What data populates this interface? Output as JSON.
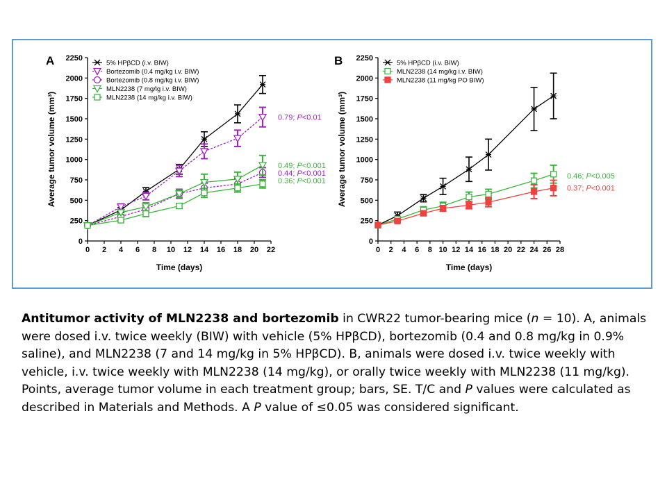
{
  "chart_data": [
    {
      "type": "line",
      "panel_label": "A",
      "xlabel": "Time (days)",
      "ylabel": "Average tumor volume (mm³)",
      "xlim": [
        0,
        22
      ],
      "ylim": [
        0,
        2250
      ],
      "xticks": [
        "0",
        "2",
        "4",
        "6",
        "8",
        "10",
        "12",
        "14",
        "16",
        "18",
        "20",
        "22"
      ],
      "yticks": [
        "0",
        "250",
        "500",
        "750",
        "1000",
        "1250",
        "1500",
        "1750",
        "2000",
        "2250"
      ],
      "legend_position": "top-left",
      "series": [
        {
          "name": "5% HPβCD (i.v. BIW)",
          "color": "#000000",
          "marker": "x",
          "dashed": false,
          "x": [
            0,
            4,
            7,
            11,
            14,
            18,
            21
          ],
          "y": [
            190,
            380,
            610,
            880,
            1250,
            1560,
            1920
          ],
          "err": [
            15,
            30,
            45,
            60,
            90,
            110,
            110
          ]
        },
        {
          "name": "Bortezomib (0.4 mg/kg i.v. BIW)",
          "color": "#a020c0",
          "marker": "triangle-down",
          "dashed": true,
          "x": [
            0,
            4,
            7,
            11,
            14,
            18,
            21
          ],
          "y": [
            190,
            420,
            550,
            860,
            1100,
            1260,
            1520
          ],
          "err": [
            15,
            35,
            45,
            70,
            90,
            100,
            120
          ]
        },
        {
          "name": "Bortezomib (0.8 mg/kg i.v. BIW)",
          "color": "#a020c0",
          "marker": "circle",
          "dashed": true,
          "x": [
            0,
            4,
            7,
            11,
            14,
            18,
            21
          ],
          "y": [
            190,
            300,
            390,
            580,
            650,
            700,
            840
          ],
          "err": [
            15,
            25,
            40,
            55,
            60,
            70,
            60
          ]
        },
        {
          "name": "MLN2238 (7 mg/lg i.v. BIW)",
          "color": "#3cb43c",
          "marker": "triangle-down-green",
          "dashed": false,
          "x": [
            0,
            4,
            7,
            11,
            14,
            18,
            21
          ],
          "y": [
            190,
            350,
            420,
            580,
            720,
            760,
            930
          ],
          "err": [
            15,
            25,
            50,
            45,
            100,
            85,
            120
          ]
        },
        {
          "name": "MLN2238 (14 mg/kg i.v. BIW)",
          "color": "#3cb43c",
          "marker": "square",
          "dashed": false,
          "x": [
            0,
            4,
            7,
            11,
            14,
            18,
            21
          ],
          "y": [
            190,
            255,
            335,
            430,
            590,
            650,
            700
          ],
          "err": [
            15,
            15,
            35,
            30,
            55,
            50,
            50
          ]
        }
      ],
      "annotations": [
        {
          "text_value": "0.79; ",
          "text_p": "P",
          "text_rest": "<0.01",
          "y": 1520,
          "color": "#a020c0"
        },
        {
          "text_value": "0.49; ",
          "text_p": "P",
          "text_rest": "<0.001",
          "y": 930,
          "color": "#3cb43c"
        },
        {
          "text_value": "0.44; ",
          "text_p": "P",
          "text_rest": "<0.001",
          "y": 835,
          "color": "#a020c0"
        },
        {
          "text_value": "0.36; ",
          "text_p": "P",
          "text_rest": "<0.001",
          "y": 740,
          "color": "#3cb43c"
        }
      ]
    },
    {
      "type": "line",
      "panel_label": "B",
      "xlabel": "Time (days)",
      "ylabel": "Average tumor volume (mm³)",
      "xlim": [
        0,
        28
      ],
      "ylim": [
        0,
        2250
      ],
      "xticks": [
        "0",
        "2",
        "4",
        "6",
        "8",
        "10",
        "12",
        "14",
        "16",
        "18",
        "20",
        "22",
        "24",
        "26",
        "28"
      ],
      "yticks": [
        "0",
        "250",
        "500",
        "750",
        "1000",
        "1250",
        "1500",
        "1750",
        "2000",
        "2250"
      ],
      "legend_position": "top-left",
      "series": [
        {
          "name": "5% HPβCD (i.v. BIW)",
          "color": "#000000",
          "marker": "x",
          "dashed": false,
          "x": [
            0,
            3,
            7,
            10,
            14,
            17,
            24,
            27
          ],
          "y": [
            195,
            310,
            525,
            670,
            880,
            1060,
            1620,
            1780
          ],
          "err": [
            15,
            45,
            45,
            100,
            150,
            190,
            265,
            280
          ]
        },
        {
          "name": "MLN2238 (14 mg/kg i.v. BIW)",
          "color": "#3cb43c",
          "marker": "square",
          "dashed": false,
          "x": [
            0,
            3,
            7,
            10,
            14,
            17,
            24,
            27
          ],
          "y": [
            195,
            270,
            380,
            430,
            540,
            575,
            740,
            820
          ],
          "err": [
            15,
            25,
            40,
            45,
            60,
            60,
            90,
            110
          ]
        },
        {
          "name": "MLN2238 (11 mg/kg PO BIW)",
          "color": "#f04040",
          "marker": "square-filled",
          "dashed": false,
          "x": [
            0,
            3,
            7,
            10,
            14,
            17,
            24,
            27
          ],
          "y": [
            195,
            245,
            340,
            400,
            440,
            475,
            605,
            650
          ],
          "err": [
            15,
            15,
            30,
            35,
            45,
            55,
            85,
            95
          ]
        }
      ],
      "annotations": [
        {
          "text_value": "0.46; ",
          "text_p": "P",
          "text_rest": "<0.005",
          "y": 800,
          "color": "#3cb43c"
        },
        {
          "text_value": "0.37; ",
          "text_p": "P",
          "text_rest": "<0.001",
          "y": 650,
          "color": "#f04040"
        }
      ]
    }
  ],
  "caption": {
    "bold_title": "Antitumor activity of MLN2238 and bortezomib",
    "part1": " in CWR22 tumor-bearing mice (",
    "n_italic": "n",
    "part2": " = 10). A, animals were dosed i.v. twice weekly (BIW) with vehicle (5% HPβCD), bortezomib (0.4 and 0.8 mg/kg in 0.9% saline), and MLN2238 (7 and 14 mg/kg in 5% HPβCD). B, animals were dosed i.v. twice weekly with vehicle, i.v. twice weekly with MLN2238 (14 mg/kg), or orally twice weekly with MLN2238 (11 mg/kg). Points, average tumor volume in each treatment group; bars, SE. T/C and ",
    "p_italic_1": "P",
    "part3": " values were calculated as described in Materials and Methods. A ",
    "p_italic_2": "P",
    "part4": " value of ≤0.05 was considered significant."
  }
}
